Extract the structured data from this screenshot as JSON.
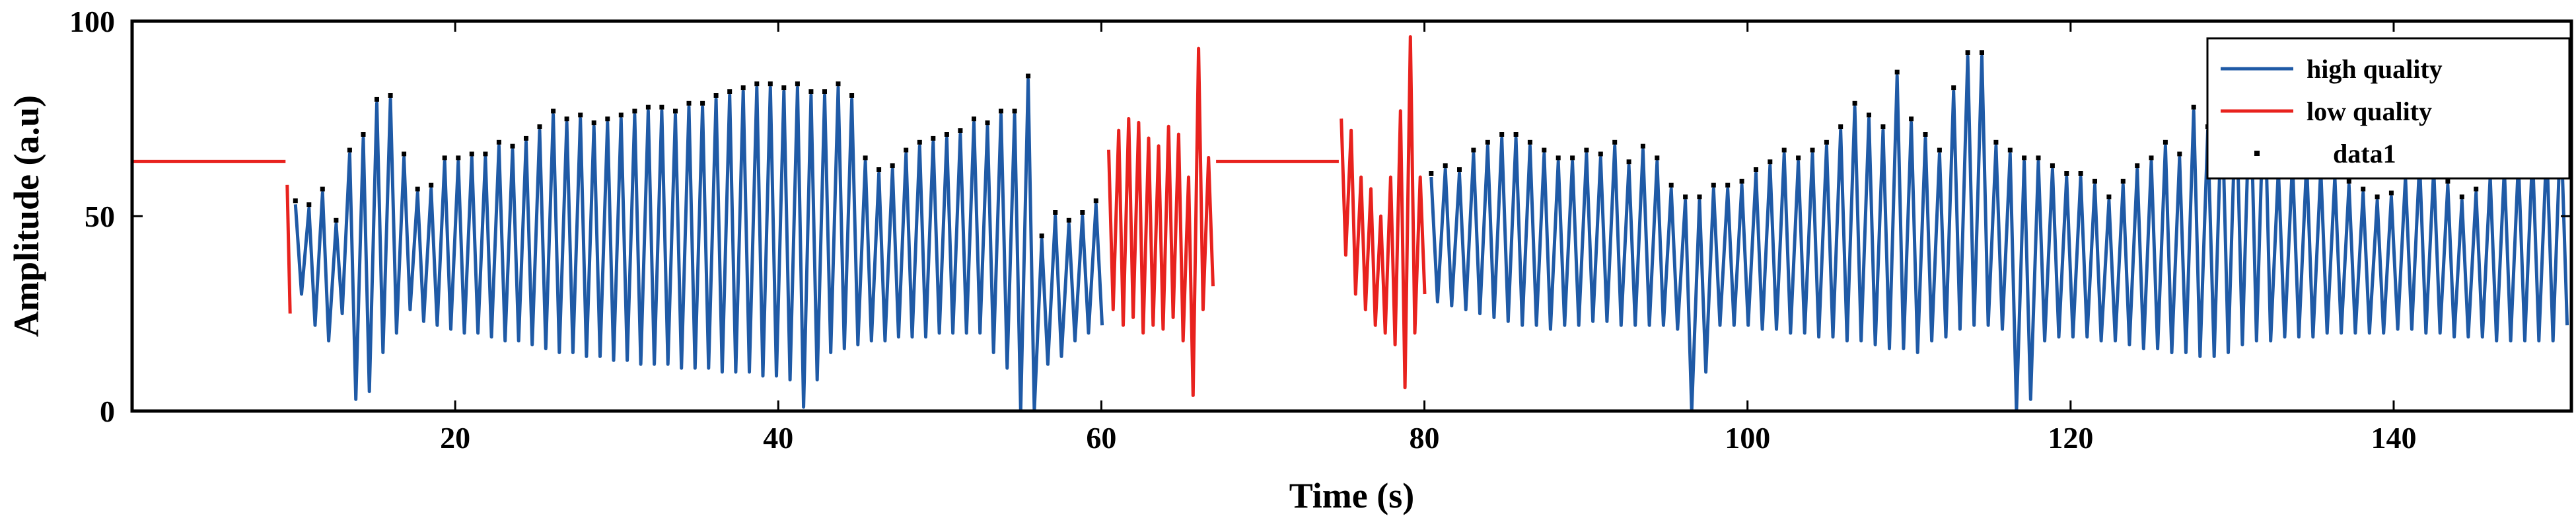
{
  "chart_data": {
    "type": "line",
    "xlabel": "Time (s)",
    "ylabel": "Amplitude (a.u)",
    "xlim": [
      0,
      151
    ],
    "ylim": [
      0,
      100
    ],
    "x_ticks": [
      20,
      40,
      60,
      80,
      100,
      120,
      140
    ],
    "x_tick_labels": [
      "20",
      "40",
      "60",
      "80",
      "100",
      "120",
      "140"
    ],
    "y_ticks": [
      0,
      50,
      100
    ],
    "y_tick_labels": [
      "0",
      "50",
      "100"
    ],
    "grid": false,
    "legend_position": "top-right",
    "legend": [
      "high quality",
      "low quality",
      "data1"
    ],
    "colors": {
      "high quality": "#1f5aa6",
      "low quality": "#e8221e",
      "data1": "#000000"
    },
    "baseline_level": 64,
    "segments": [
      {
        "series": "low quality",
        "start": 0,
        "end": 9.5,
        "kind": "flat",
        "level": 64
      },
      {
        "series": "low quality",
        "start": 9.5,
        "end": 9.9,
        "kind": "osc",
        "peaks": [
          58
        ],
        "troughs": [
          25
        ]
      },
      {
        "series": "high quality",
        "start": 9.9,
        "end": 60.3,
        "kind": "osc",
        "peaks": [
          53,
          52,
          56,
          48,
          66,
          70,
          79,
          80,
          65,
          56,
          57,
          64,
          64,
          65,
          65,
          68,
          67,
          69,
          72,
          76,
          74,
          75,
          73,
          74,
          75,
          76,
          77,
          77,
          76,
          78,
          78,
          80,
          81,
          82,
          83,
          83,
          82,
          83,
          81,
          81,
          83,
          80,
          64,
          61,
          62,
          66,
          68,
          69,
          70,
          71,
          74,
          73,
          76,
          76,
          85,
          44,
          50,
          48,
          50,
          53
        ],
        "troughs": [
          30,
          22,
          18,
          25,
          3,
          5,
          15,
          20,
          26,
          23,
          22,
          21,
          20,
          20,
          19,
          18,
          18,
          17,
          16,
          15,
          15,
          14,
          14,
          13,
          13,
          12,
          12,
          12,
          11,
          11,
          11,
          10,
          10,
          10,
          9,
          9,
          8,
          1,
          8,
          15,
          16,
          17,
          18,
          18,
          19,
          19,
          19,
          20,
          20,
          20,
          20,
          15,
          11,
          0,
          0,
          12,
          14,
          18,
          20,
          22
        ]
      },
      {
        "series": "low quality",
        "start": 60.3,
        "end": 67.1,
        "kind": "osc",
        "peaks": [
          67,
          72,
          75,
          74,
          70,
          68,
          73,
          71,
          60,
          93,
          65
        ],
        "troughs": [
          26,
          22,
          24,
          20,
          22,
          21,
          24,
          18,
          4,
          26,
          32
        ]
      },
      {
        "series": "low quality",
        "start": 67.1,
        "end": 74.7,
        "kind": "flat",
        "level": 64
      },
      {
        "series": "low quality",
        "start": 74.7,
        "end": 80.2,
        "kind": "osc",
        "peaks": [
          75,
          72,
          60,
          57,
          50,
          60,
          77,
          96,
          60
        ],
        "troughs": [
          40,
          30,
          26,
          22,
          20,
          17,
          6,
          20,
          30
        ]
      },
      {
        "series": "high quality",
        "start": 80.2,
        "end": 151,
        "kind": "osc",
        "peaks": [
          60,
          62,
          61,
          66,
          68,
          70,
          70,
          68,
          66,
          64,
          64,
          66,
          65,
          68,
          63,
          67,
          64,
          57,
          54,
          54,
          57,
          57,
          58,
          61,
          63,
          66,
          64,
          66,
          68,
          72,
          78,
          75,
          72,
          86,
          74,
          70,
          66,
          82,
          91,
          91,
          68,
          66,
          64,
          64,
          62,
          60,
          60,
          58,
          54,
          58,
          62,
          64,
          68,
          65,
          77,
          72,
          80,
          82,
          86,
          86,
          62,
          64,
          64,
          62,
          60,
          58,
          56,
          54,
          55,
          60,
          64,
          62,
          58,
          54,
          56,
          60,
          62,
          64,
          66,
          68,
          74
        ],
        "troughs": [
          28,
          27,
          26,
          25,
          24,
          23,
          22,
          22,
          21,
          22,
          22,
          23,
          23,
          22,
          22,
          22,
          22,
          21,
          0,
          10,
          22,
          22,
          22,
          21,
          21,
          20,
          20,
          19,
          19,
          18,
          18,
          17,
          16,
          16,
          15,
          18,
          19,
          21,
          22,
          22,
          21,
          0,
          3,
          18,
          19,
          19,
          19,
          18,
          18,
          17,
          16,
          16,
          15,
          15,
          14,
          14,
          15,
          17,
          18,
          18,
          19,
          19,
          19,
          20,
          20,
          20,
          20,
          20,
          21,
          21,
          20,
          20,
          19,
          19,
          19,
          18,
          18,
          18,
          18,
          18,
          22
        ]
      }
    ]
  }
}
